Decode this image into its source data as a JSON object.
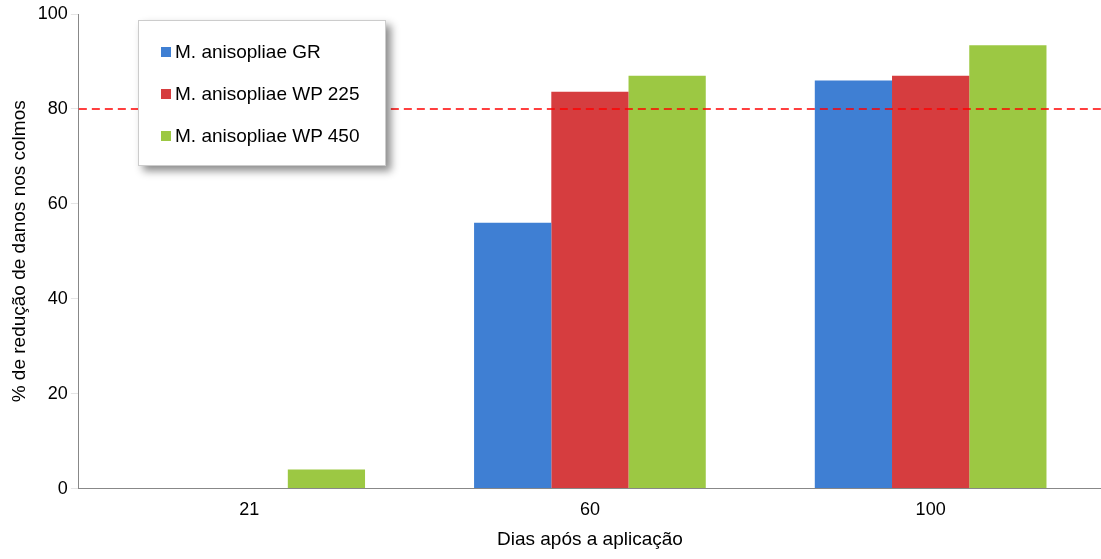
{
  "chart_data": {
    "type": "bar",
    "xlabel": "Dias após a aplicação",
    "ylabel": "% de redução de danos nos colmos",
    "categories": [
      "21",
      "60",
      "100"
    ],
    "series": [
      {
        "name": "M. anisopliae GR",
        "color": "#3f7fd3",
        "values": [
          0,
          56,
          86
        ]
      },
      {
        "name": "M. anisopliae WP 225",
        "color": "#d63d3f",
        "values": [
          0,
          83.6,
          87
        ]
      },
      {
        "name": "M. anisopliae WP 450",
        "color": "#9cc843",
        "values": [
          4,
          87,
          93.4
        ]
      }
    ],
    "ylim": [
      0,
      100
    ],
    "yticks": [
      0,
      20,
      40,
      60,
      80,
      100
    ],
    "grid": false,
    "legend": "top left",
    "ref_lines": [
      {
        "axis": "y",
        "value": 80,
        "color": "#ff0000",
        "line_style": "dashed"
      }
    ]
  }
}
